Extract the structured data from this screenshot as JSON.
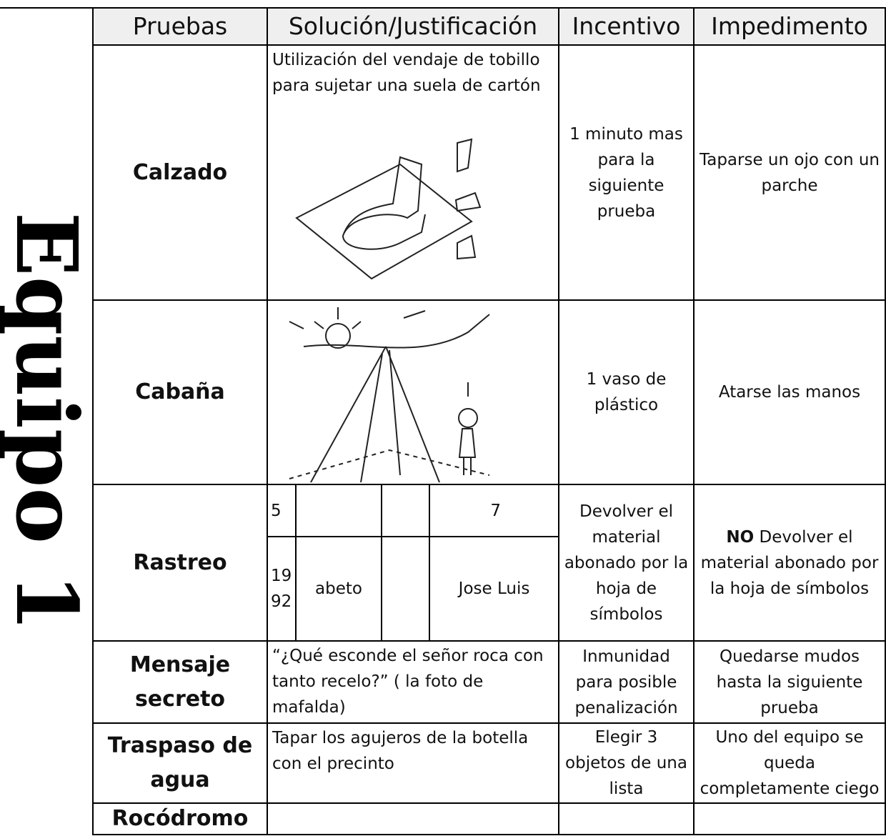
{
  "side_label": "Equipo 1",
  "table": {
    "headers": [
      "Pruebas",
      "Solución/Justificación",
      "Incentivo",
      "Impedimento"
    ],
    "rows": [
      {
        "prueba": "Calzado",
        "solucion": "Utilización del vendaje de tobillo para sujetar una suela de cartón",
        "incentivo": "1 minuto mas para la siguiente prueba",
        "impedimento": "Taparse un ojo con un parche"
      },
      {
        "prueba": "Cabaña",
        "incentivo": "1 vaso de plástico",
        "impedimento": "Atarse las manos"
      },
      {
        "prueba": "Rastreo",
        "solucion_grid": [
          [
            "5",
            null,
            null,
            "7"
          ],
          [
            "1992",
            "abeto",
            null,
            "Jose Luis"
          ]
        ],
        "incentivo": "Devolver el material abonado por la hoja de símbolos",
        "impedimento_bold": "NO",
        "impedimento": "Devolver el material abonado por la hoja de símbolos"
      },
      {
        "prueba": "Mensaje secreto",
        "solucion": "“¿Qué esconde el señor roca con tanto recelo?” ( la foto de mafalda)",
        "incentivo": "Inmunidad para posible penalización",
        "impedimento": "Quedarse mudos hasta la siguiente prueba"
      },
      {
        "prueba": "Traspaso de agua",
        "solucion": "Tapar los agujeros de la botella con el precinto",
        "incentivo": "Elegir 3 objetos de una lista",
        "impedimento": "Uno del equipo se queda completamente ciego"
      },
      {
        "prueba": "Rocódromo"
      }
    ]
  }
}
